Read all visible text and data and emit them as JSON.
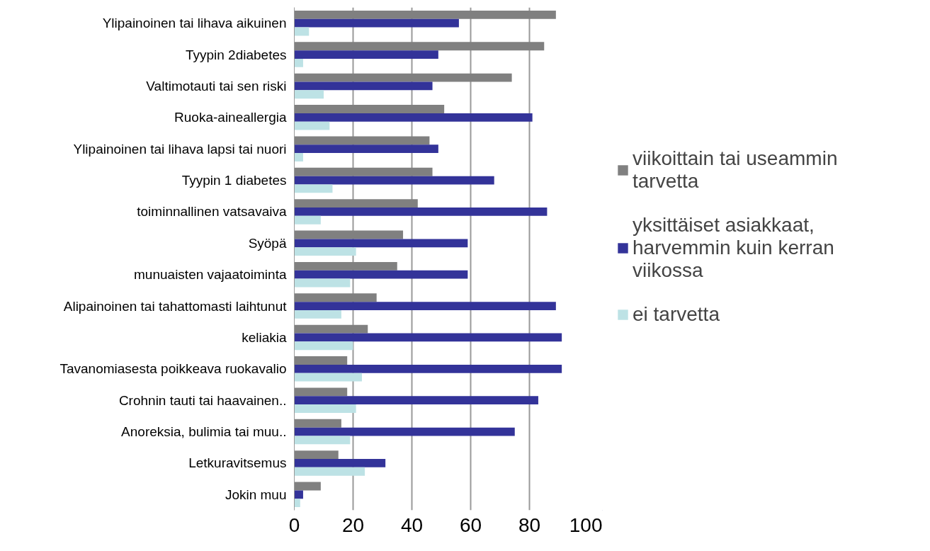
{
  "chart_data": {
    "type": "bar",
    "orientation": "horizontal",
    "categories": [
      "Ylipainoinen tai lihava aikuinen",
      "Tyypin 2diabetes",
      "Valtimotauti tai sen riski",
      "Ruoka-aineallergia",
      "Ylipainoinen tai lihava lapsi tai nuori",
      "Tyypin 1 diabetes",
      "toiminnallinen vatsavaiva",
      "Syöpä",
      "munuaisten vajaatoiminta",
      "Alipainoinen tai tahattomasti laihtunut",
      "keliakia",
      "Tavanomiasesta poikkeava ruokavalio",
      "Crohnin tauti tai haavainen..",
      "Anoreksia, bulimia tai muu..",
      "Letkuravitsemus",
      "Jokin muu"
    ],
    "series": [
      {
        "name": "viikoittain tai useammin tarvetta",
        "color": "#808080",
        "values": [
          89,
          85,
          74,
          51,
          46,
          47,
          42,
          37,
          35,
          28,
          25,
          18,
          18,
          16,
          15,
          9
        ]
      },
      {
        "name": "yksittäiset asiakkaat, harvemmin kuin kerran viikossa",
        "color": "#333399",
        "values": [
          56,
          49,
          47,
          81,
          49,
          68,
          86,
          59,
          59,
          89,
          91,
          91,
          83,
          75,
          31,
          3
        ]
      },
      {
        "name": "ei tarvetta",
        "color": "#bde2e5",
        "values": [
          5,
          3,
          10,
          12,
          3,
          13,
          9,
          21,
          19,
          16,
          20,
          23,
          21,
          19,
          24,
          2
        ]
      }
    ],
    "xlim": [
      0,
      100
    ],
    "xticks": [
      0,
      20,
      40,
      60,
      80,
      100
    ],
    "grid": "x",
    "legend": "right"
  }
}
